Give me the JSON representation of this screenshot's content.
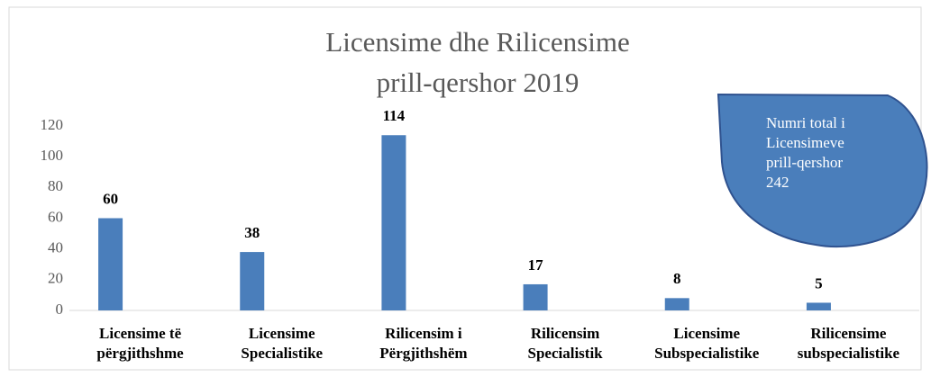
{
  "chart_data": {
    "type": "bar",
    "title": [
      "Licensime dhe Rilicensime",
      "prill-qershor 2019"
    ],
    "categories": [
      [
        "Licensime të",
        "përgjithshme"
      ],
      [
        "Licensime",
        "Specialistike"
      ],
      [
        "Rilicensim i",
        "Përgjithshëm"
      ],
      [
        "Rilicensim",
        "Specialistik"
      ],
      [
        "Licensime",
        "Subspecialistike"
      ],
      [
        "Rilicensime",
        "subspecialistike"
      ]
    ],
    "values": [
      60,
      38,
      114,
      17,
      8,
      5
    ],
    "color": "#4a7ebb",
    "ylim": [
      0,
      120
    ],
    "yticks": [
      0,
      20,
      40,
      60,
      80,
      100,
      120
    ],
    "grid": false,
    "annotation": [
      "Numri total i",
      "Licensimeve",
      "prill-qershor",
      "242"
    ]
  }
}
